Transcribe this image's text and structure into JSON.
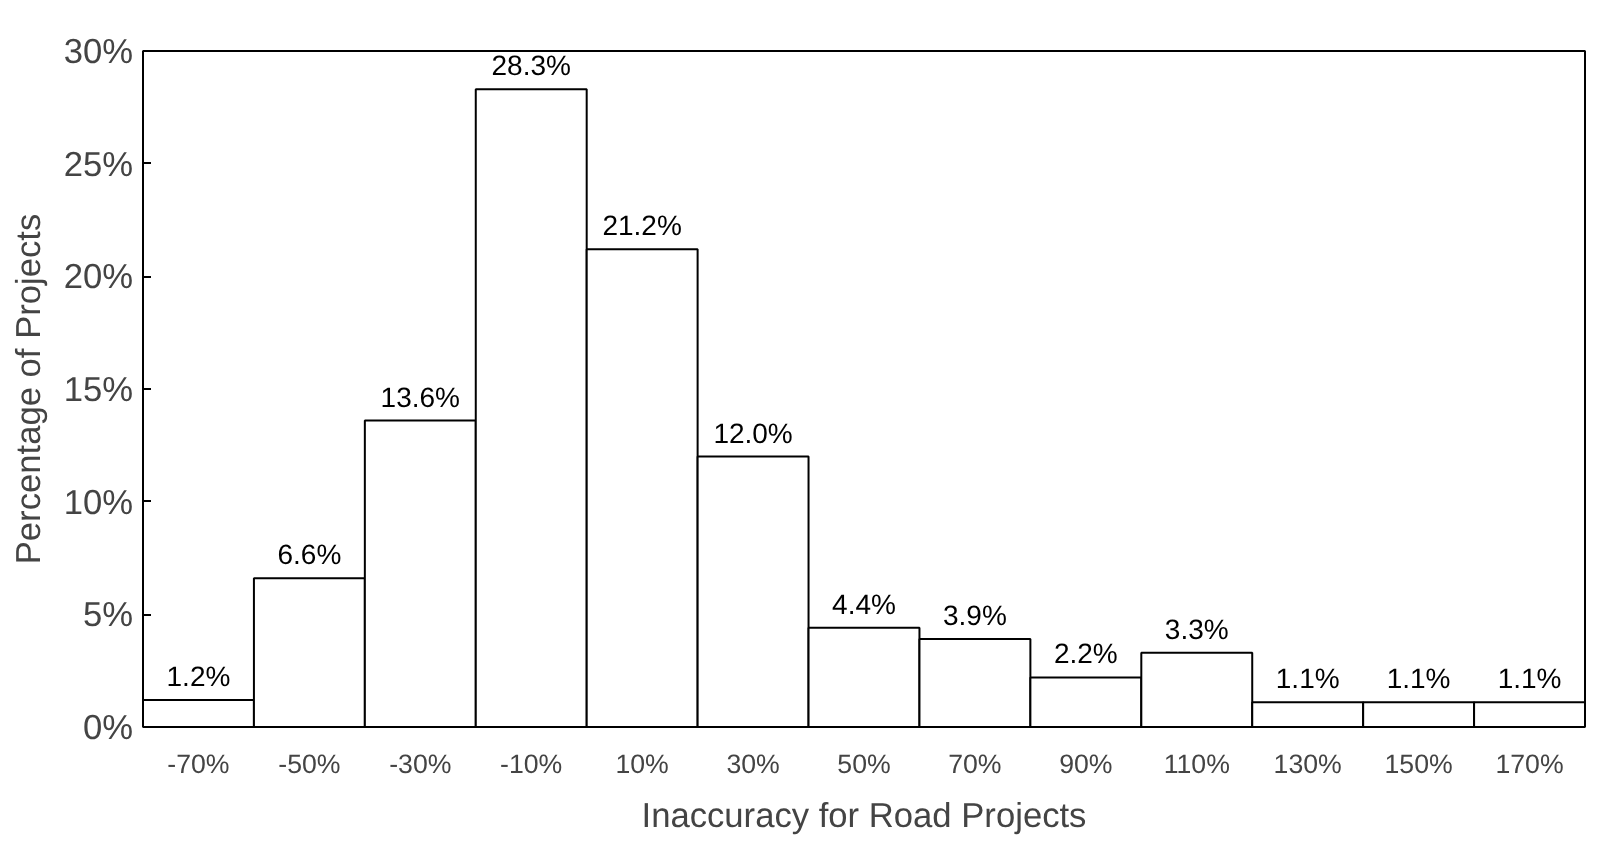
{
  "chart_data": {
    "type": "bar",
    "xlabel": "Inaccuracy for Road Projects",
    "ylabel": "Percentage of Projects",
    "categories": [
      "-70%",
      "-50%",
      "-30%",
      "-10%",
      "10%",
      "30%",
      "50%",
      "70%",
      "90%",
      "110%",
      "130%",
      "150%",
      "170%"
    ],
    "values": [
      1.2,
      6.6,
      13.6,
      28.3,
      21.2,
      12.0,
      4.4,
      3.9,
      2.2,
      3.3,
      1.1,
      1.1,
      1.1
    ],
    "value_labels": [
      "1.2%",
      "6.6%",
      "13.6%",
      "28.3%",
      "21.2%",
      "12.0%",
      "4.4%",
      "3.9%",
      "2.2%",
      "3.3%",
      "1.1%",
      "1.1%",
      "1.1%"
    ],
    "color": "#ffffff",
    "ylim": [
      0,
      30
    ],
    "yticks": [
      {
        "value": 0,
        "label": "0%"
      },
      {
        "value": 5,
        "label": "5%"
      },
      {
        "value": 10,
        "label": "10%"
      },
      {
        "value": 15,
        "label": "15%"
      },
      {
        "value": 20,
        "label": "20%"
      },
      {
        "value": 25,
        "label": "25%"
      },
      {
        "value": 30,
        "label": "30%"
      }
    ],
    "grid": false
  }
}
